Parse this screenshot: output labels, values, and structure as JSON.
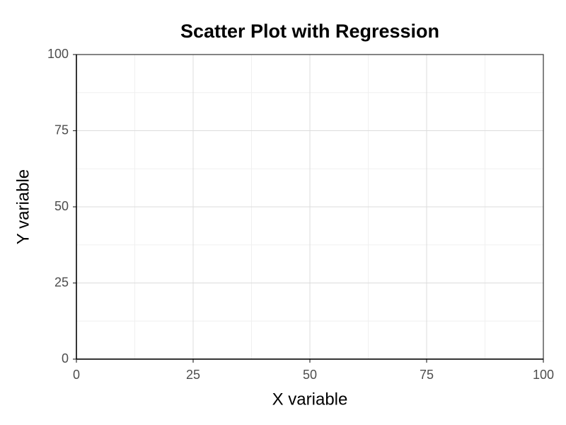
{
  "chart_data": {
    "type": "scatter",
    "title": "Scatter Plot with Regression",
    "x_label": "X variable",
    "y_label": "Y variable",
    "xlim": [
      0,
      100
    ],
    "ylim": [
      0,
      100
    ],
    "xticks": [
      0,
      25,
      50,
      75,
      100
    ],
    "yticks": [
      0,
      25,
      50,
      75,
      100
    ],
    "grid": true
  }
}
